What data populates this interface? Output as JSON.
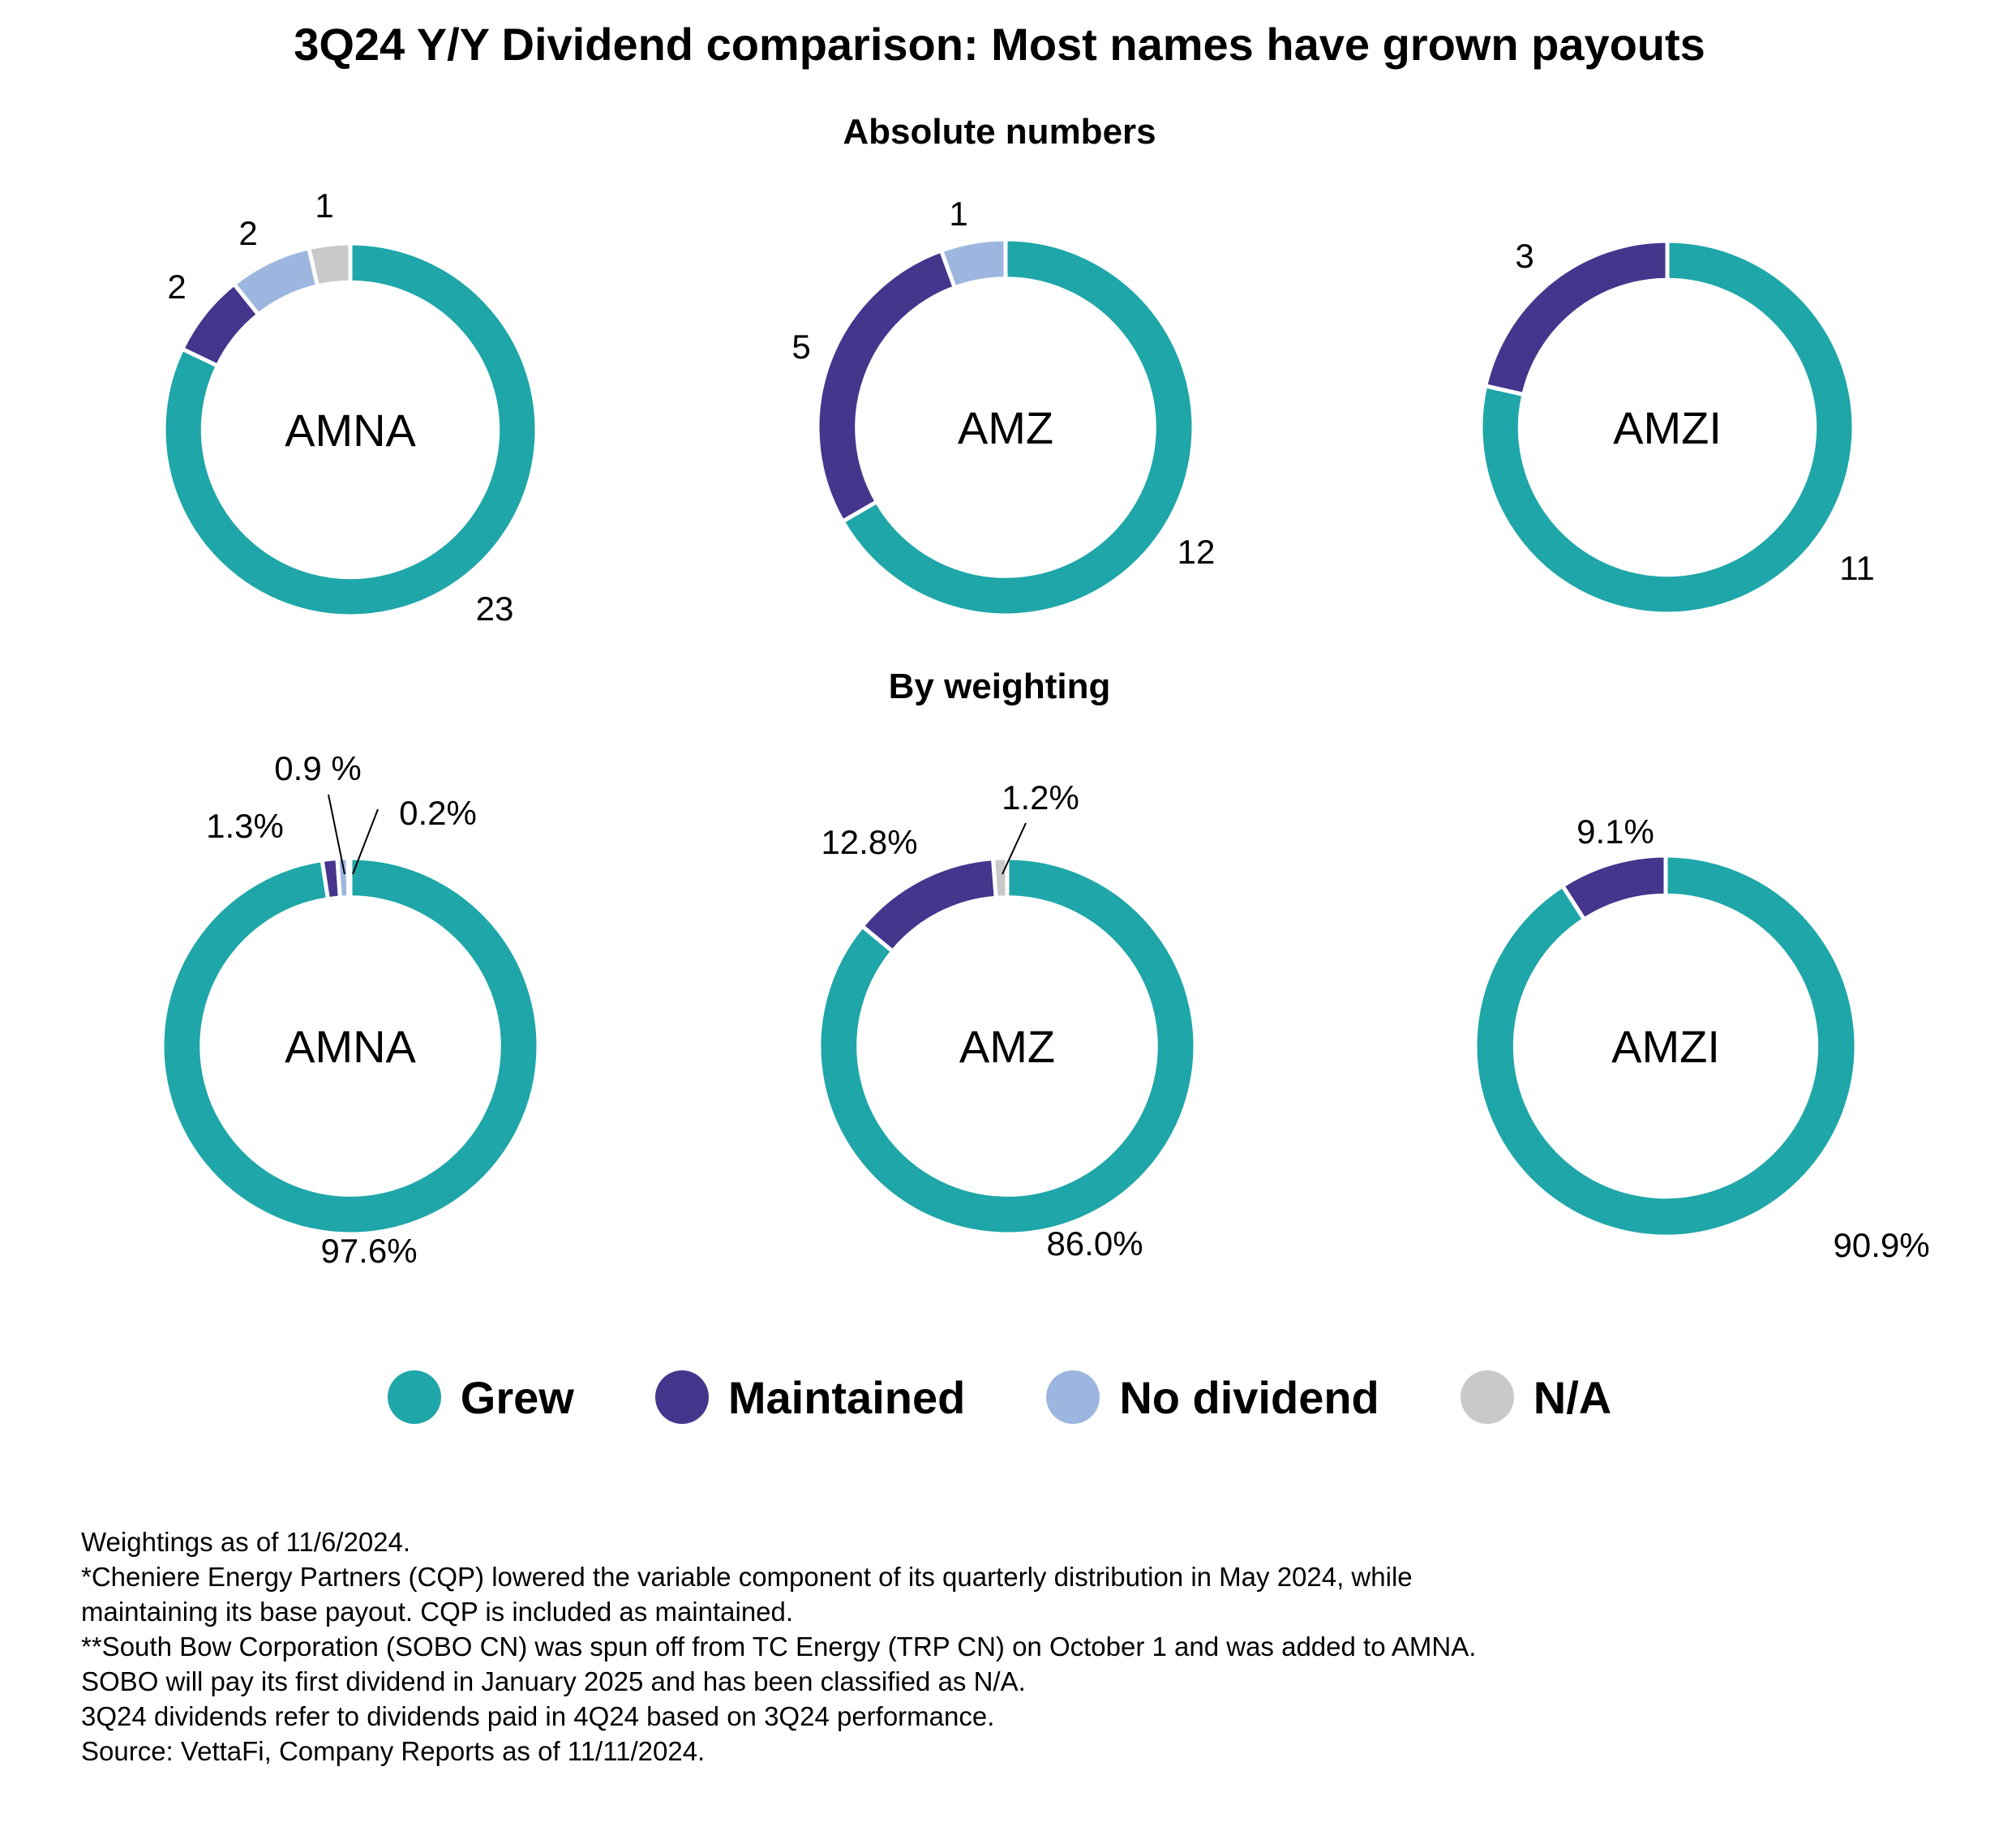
{
  "title": "3Q24 Y/Y Dividend comparison: Most names have grown payouts",
  "sections": [
    {
      "title": "Absolute numbers"
    },
    {
      "title": "By weighting"
    }
  ],
  "colors": {
    "Grew": "#1fa6a9",
    "Maintained": "#46358d",
    "No dividend": "#9db6e0",
    "N/A": "#c9c9c9"
  },
  "legend": [
    {
      "label": "Grew",
      "color": "#1fa6a9"
    },
    {
      "label": "Maintained",
      "color": "#46358d"
    },
    {
      "label": "No dividend",
      "color": "#9db6e0"
    },
    {
      "label": "N/A",
      "color": "#c9c9c9"
    }
  ],
  "chart_data": [
    {
      "type": "pie",
      "section": "Absolute numbers",
      "center_label": "AMNA",
      "categories": [
        "Grew",
        "Maintained",
        "No dividend",
        "N/A"
      ],
      "values": [
        23,
        2,
        2,
        1
      ],
      "labels": [
        "23",
        "2",
        "2",
        "1"
      ]
    },
    {
      "type": "pie",
      "section": "Absolute numbers",
      "center_label": "AMZ",
      "categories": [
        "Grew",
        "Maintained",
        "No dividend"
      ],
      "values": [
        12,
        5,
        1
      ],
      "labels": [
        "12",
        "5",
        "1"
      ]
    },
    {
      "type": "pie",
      "section": "Absolute numbers",
      "center_label": "AMZI",
      "categories": [
        "Grew",
        "Maintained"
      ],
      "values": [
        11,
        3
      ],
      "labels": [
        "11",
        "3"
      ]
    },
    {
      "type": "pie",
      "section": "By weighting",
      "center_label": "AMNA",
      "categories": [
        "Grew",
        "Maintained",
        "No dividend",
        "N/A"
      ],
      "values": [
        97.6,
        1.3,
        0.9,
        0.2
      ],
      "labels": [
        "97.6%",
        "1.3%",
        "0.9 %",
        "0.2%"
      ]
    },
    {
      "type": "pie",
      "section": "By weighting",
      "center_label": "AMZ",
      "categories": [
        "Grew",
        "Maintained",
        "N/A"
      ],
      "values": [
        86.0,
        12.8,
        1.2
      ],
      "labels": [
        "86.0%",
        "12.8%",
        "1.2%"
      ]
    },
    {
      "type": "pie",
      "section": "By weighting",
      "center_label": "AMZI",
      "categories": [
        "Grew",
        "Maintained"
      ],
      "values": [
        90.9,
        9.1
      ],
      "labels": [
        "90.9%",
        "9.1%"
      ]
    }
  ],
  "footnotes": [
    "Weightings as of 11/6/2024.",
    "*Cheniere Energy Partners (CQP) lowered the variable component of its quarterly distribution in May 2024, while",
    "maintaining its base payout. CQP is included as maintained.",
    "**South Bow Corporation (SOBO CN) was spun off from TC Energy (TRP CN) on October 1 and was added to AMNA.",
    "SOBO will pay its first dividend in January 2025 and has been classified as N/A.",
    "3Q24 dividends refer to dividends paid in 4Q24 based on 3Q24 performance.",
    "Source: VettaFi, Company Reports as of 11/11/2024."
  ]
}
